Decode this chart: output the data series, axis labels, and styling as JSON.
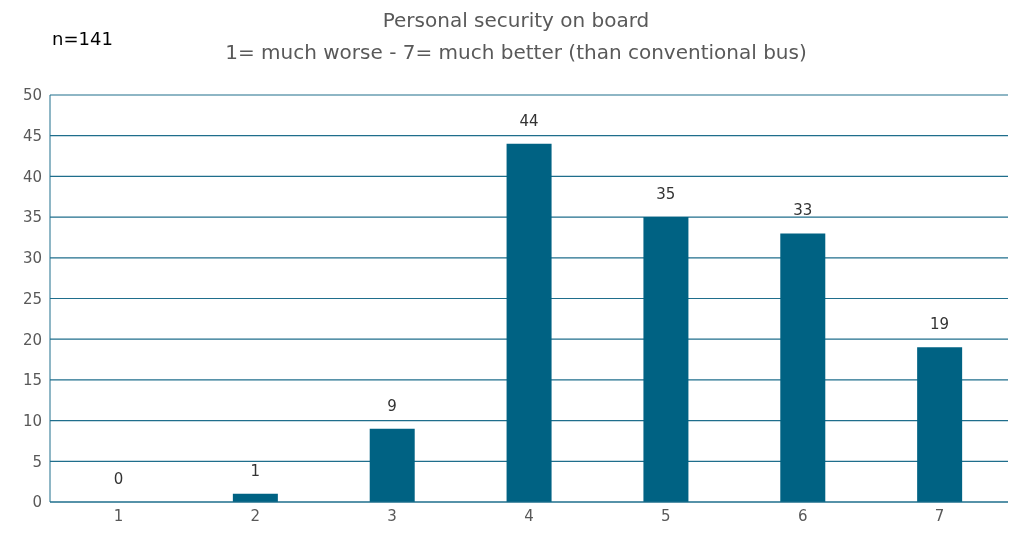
{
  "chart_data": {
    "type": "bar",
    "title": "Personal security on board",
    "subtitle": "1= much worse - 7= much better (than conventional bus)",
    "annotations": [
      "n=141"
    ],
    "categories": [
      "1",
      "2",
      "3",
      "4",
      "5",
      "6",
      "7"
    ],
    "values": [
      0,
      1,
      9,
      44,
      35,
      33,
      19
    ],
    "color": "#006283",
    "ylim": [
      0,
      50
    ],
    "yticks": [
      0,
      5,
      10,
      15,
      20,
      25,
      30,
      35,
      40,
      45,
      50
    ],
    "grid": "y",
    "data_labels": true
  }
}
